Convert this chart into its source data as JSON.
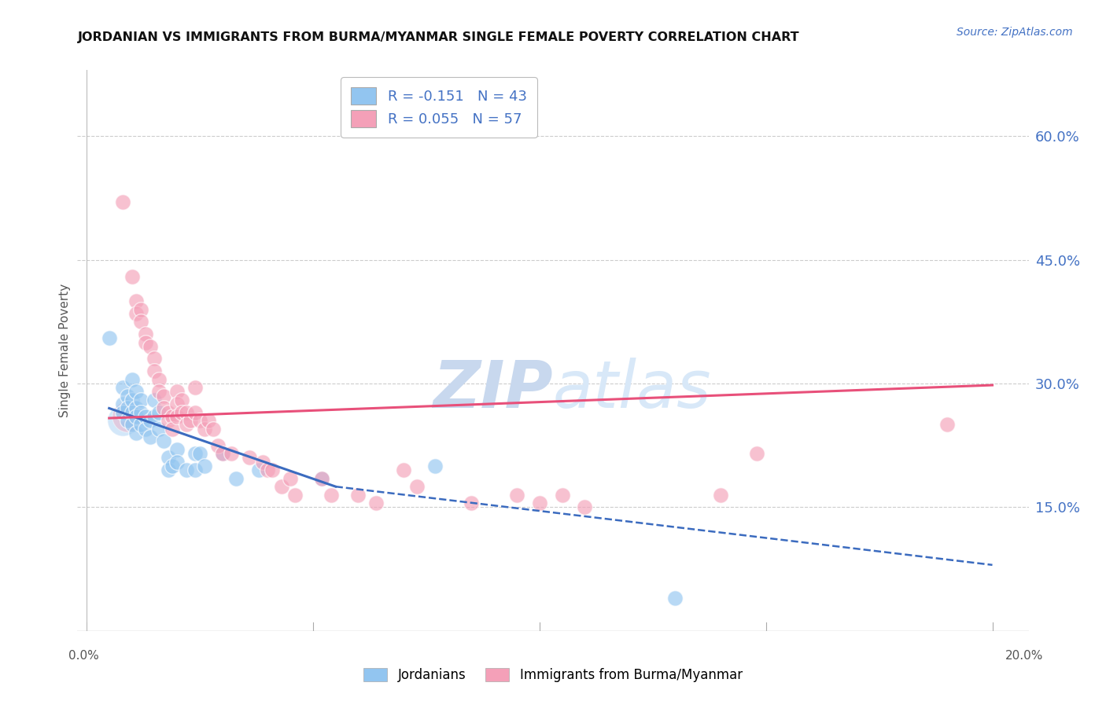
{
  "title": "JORDANIAN VS IMMIGRANTS FROM BURMA/MYANMAR SINGLE FEMALE POVERTY CORRELATION CHART",
  "source": "Source: ZipAtlas.com",
  "ylabel": "Single Female Poverty",
  "ytick_labels": [
    "60.0%",
    "45.0%",
    "30.0%",
    "15.0%"
  ],
  "ytick_values": [
    0.6,
    0.45,
    0.3,
    0.15
  ],
  "legend1_r": "-0.151",
  "legend1_n": "43",
  "legend2_r": "0.055",
  "legend2_n": "57",
  "legend_label1": "Jordanians",
  "legend_label2": "Immigrants from Burma/Myanmar",
  "color_blue": "#92C5F0",
  "color_pink": "#F4A0B8",
  "line_color_blue": "#3B6BBF",
  "line_color_pink": "#E8507A",
  "watermark_zip": "ZIP",
  "watermark_atlas": "atlas",
  "blue_points": [
    [
      0.005,
      0.355
    ],
    [
      0.008,
      0.295
    ],
    [
      0.008,
      0.275
    ],
    [
      0.008,
      0.265
    ],
    [
      0.009,
      0.285
    ],
    [
      0.009,
      0.27
    ],
    [
      0.009,
      0.255
    ],
    [
      0.01,
      0.305
    ],
    [
      0.01,
      0.28
    ],
    [
      0.01,
      0.265
    ],
    [
      0.01,
      0.25
    ],
    [
      0.011,
      0.29
    ],
    [
      0.011,
      0.27
    ],
    [
      0.011,
      0.26
    ],
    [
      0.011,
      0.24
    ],
    [
      0.012,
      0.28
    ],
    [
      0.012,
      0.265
    ],
    [
      0.012,
      0.25
    ],
    [
      0.013,
      0.26
    ],
    [
      0.013,
      0.245
    ],
    [
      0.014,
      0.255
    ],
    [
      0.014,
      0.235
    ],
    [
      0.015,
      0.28
    ],
    [
      0.015,
      0.26
    ],
    [
      0.016,
      0.265
    ],
    [
      0.016,
      0.245
    ],
    [
      0.017,
      0.23
    ],
    [
      0.018,
      0.21
    ],
    [
      0.018,
      0.195
    ],
    [
      0.019,
      0.2
    ],
    [
      0.02,
      0.22
    ],
    [
      0.02,
      0.205
    ],
    [
      0.022,
      0.195
    ],
    [
      0.024,
      0.215
    ],
    [
      0.024,
      0.195
    ],
    [
      0.025,
      0.215
    ],
    [
      0.026,
      0.2
    ],
    [
      0.03,
      0.215
    ],
    [
      0.033,
      0.185
    ],
    [
      0.038,
      0.195
    ],
    [
      0.052,
      0.185
    ],
    [
      0.077,
      0.2
    ],
    [
      0.13,
      0.04
    ]
  ],
  "pink_points": [
    [
      0.008,
      0.52
    ],
    [
      0.01,
      0.43
    ],
    [
      0.011,
      0.4
    ],
    [
      0.011,
      0.385
    ],
    [
      0.012,
      0.39
    ],
    [
      0.012,
      0.375
    ],
    [
      0.013,
      0.36
    ],
    [
      0.013,
      0.35
    ],
    [
      0.014,
      0.345
    ],
    [
      0.015,
      0.33
    ],
    [
      0.015,
      0.315
    ],
    [
      0.016,
      0.305
    ],
    [
      0.016,
      0.29
    ],
    [
      0.017,
      0.285
    ],
    [
      0.017,
      0.27
    ],
    [
      0.018,
      0.265
    ],
    [
      0.018,
      0.255
    ],
    [
      0.019,
      0.26
    ],
    [
      0.019,
      0.245
    ],
    [
      0.02,
      0.29
    ],
    [
      0.02,
      0.275
    ],
    [
      0.02,
      0.26
    ],
    [
      0.021,
      0.28
    ],
    [
      0.021,
      0.265
    ],
    [
      0.022,
      0.265
    ],
    [
      0.022,
      0.25
    ],
    [
      0.023,
      0.255
    ],
    [
      0.024,
      0.295
    ],
    [
      0.024,
      0.265
    ],
    [
      0.025,
      0.255
    ],
    [
      0.026,
      0.245
    ],
    [
      0.027,
      0.255
    ],
    [
      0.028,
      0.245
    ],
    [
      0.029,
      0.225
    ],
    [
      0.03,
      0.215
    ],
    [
      0.032,
      0.215
    ],
    [
      0.036,
      0.21
    ],
    [
      0.039,
      0.205
    ],
    [
      0.04,
      0.195
    ],
    [
      0.041,
      0.195
    ],
    [
      0.043,
      0.175
    ],
    [
      0.045,
      0.185
    ],
    [
      0.046,
      0.165
    ],
    [
      0.052,
      0.185
    ],
    [
      0.054,
      0.165
    ],
    [
      0.06,
      0.165
    ],
    [
      0.064,
      0.155
    ],
    [
      0.07,
      0.195
    ],
    [
      0.073,
      0.175
    ],
    [
      0.085,
      0.155
    ],
    [
      0.095,
      0.165
    ],
    [
      0.1,
      0.155
    ],
    [
      0.105,
      0.165
    ],
    [
      0.11,
      0.15
    ],
    [
      0.148,
      0.215
    ],
    [
      0.19,
      0.25
    ],
    [
      0.14,
      0.165
    ]
  ],
  "blue_line_solid": {
    "x0": 0.005,
    "y0": 0.27,
    "x1": 0.055,
    "y1": 0.175
  },
  "blue_line_dashed": {
    "x0": 0.055,
    "y0": 0.175,
    "x1": 0.2,
    "y1": 0.08
  },
  "pink_line": {
    "x0": 0.005,
    "y0": 0.258,
    "x1": 0.2,
    "y1": 0.298
  },
  "xlim": [
    -0.002,
    0.208
  ],
  "ylim": [
    0.0,
    0.68
  ],
  "xtick_positions": [
    0.0,
    0.05,
    0.1,
    0.15,
    0.2
  ],
  "background_color": "#FFFFFF",
  "grid_color": "#CCCCCC"
}
